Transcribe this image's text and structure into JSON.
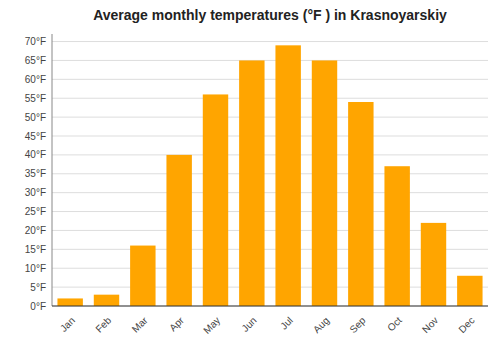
{
  "chart_data": {
    "type": "bar",
    "title": "Average monthly temperatures (°F ) in Krasnoyarskiy",
    "categories": [
      "Jan",
      "Feb",
      "Mar",
      "Apr",
      "May",
      "Jun",
      "Jul",
      "Aug",
      "Sep",
      "Oct",
      "Nov",
      "Dec"
    ],
    "values": [
      2,
      3,
      16,
      40,
      56,
      65,
      69,
      65,
      54,
      37,
      22,
      8
    ],
    "color": "#FFA500",
    "ylim": [
      0,
      72
    ],
    "yticks": [
      {
        "value": 0,
        "label": "0°F"
      },
      {
        "value": 5,
        "label": "5°F"
      },
      {
        "value": 10,
        "label": "10°F"
      },
      {
        "value": 15,
        "label": "15°F"
      },
      {
        "value": 20,
        "label": "20°F"
      },
      {
        "value": 25,
        "label": "25°F"
      },
      {
        "value": 30,
        "label": "30°F"
      },
      {
        "value": 35,
        "label": "35°F"
      },
      {
        "value": 40,
        "label": "40°F"
      },
      {
        "value": 45,
        "label": "45°F"
      },
      {
        "value": 50,
        "label": "50°F"
      },
      {
        "value": 55,
        "label": "55°F"
      },
      {
        "value": 60,
        "label": "60°F"
      },
      {
        "value": 65,
        "label": "65°F"
      },
      {
        "value": 70,
        "label": "70°F"
      }
    ],
    "grid": true
  }
}
